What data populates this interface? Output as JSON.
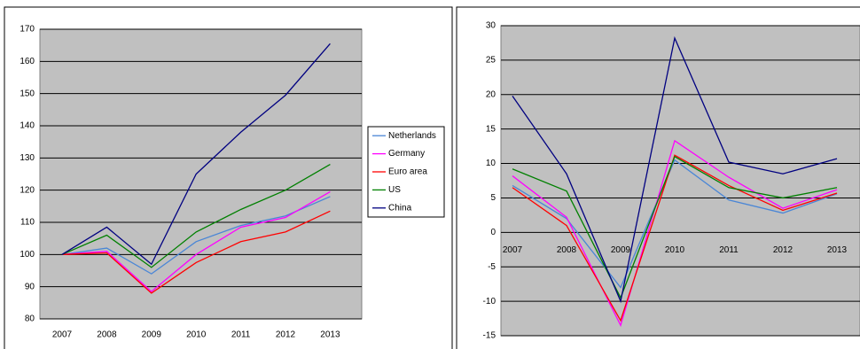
{
  "chart_data": [
    {
      "type": "line",
      "categories": [
        "2007",
        "2008",
        "2009",
        "2010",
        "2011",
        "2012",
        "2013"
      ],
      "series": [
        {
          "name": "Netherlands",
          "color": "#4a86d6",
          "values": [
            100,
            102,
            94,
            104,
            109,
            112,
            118
          ]
        },
        {
          "name": "Germany",
          "color": "#ff00ff",
          "values": [
            100,
            101,
            88.5,
            100,
            108.5,
            111.5,
            119.5
          ]
        },
        {
          "name": "Euro area",
          "color": "#ff0000",
          "values": [
            100,
            100.5,
            88,
            97.5,
            104,
            107,
            113.5
          ]
        },
        {
          "name": "US",
          "color": "#008000",
          "values": [
            100,
            106,
            96,
            107,
            114,
            120,
            128
          ]
        },
        {
          "name": "China",
          "color": "#000080",
          "values": [
            100,
            108.5,
            97,
            125,
            138,
            149.5,
            165.5
          ]
        }
      ],
      "ylim": [
        80,
        170
      ],
      "yticks": [
        80,
        90,
        100,
        110,
        120,
        130,
        140,
        150,
        160,
        170
      ],
      "grid": true,
      "legend": "right"
    },
    {
      "type": "line",
      "categories": [
        "2007",
        "2008",
        "2009",
        "2010",
        "2011",
        "2012",
        "2013"
      ],
      "series": [
        {
          "color": "#4a86d6",
          "values": [
            6.8,
            2,
            -8,
            10.5,
            4.7,
            2.8,
            5.6
          ]
        },
        {
          "color": "#ff00ff",
          "values": [
            8.2,
            2.2,
            -13.5,
            13.3,
            8,
            3.5,
            6.2
          ]
        },
        {
          "color": "#ff0000",
          "values": [
            6.5,
            1,
            -12.8,
            11.2,
            6.8,
            3.2,
            5.7
          ]
        },
        {
          "color": "#008000",
          "values": [
            9.2,
            6,
            -9.5,
            11,
            6.5,
            5,
            6.5
          ]
        },
        {
          "color": "#000080",
          "values": [
            19.8,
            8.5,
            -10,
            28.2,
            10.2,
            8.5,
            10.7
          ]
        }
      ],
      "ylim": [
        -15,
        30
      ],
      "yticks": [
        -15,
        -10,
        -5,
        0,
        5,
        10,
        15,
        20,
        25,
        30
      ],
      "grid": true
    }
  ]
}
